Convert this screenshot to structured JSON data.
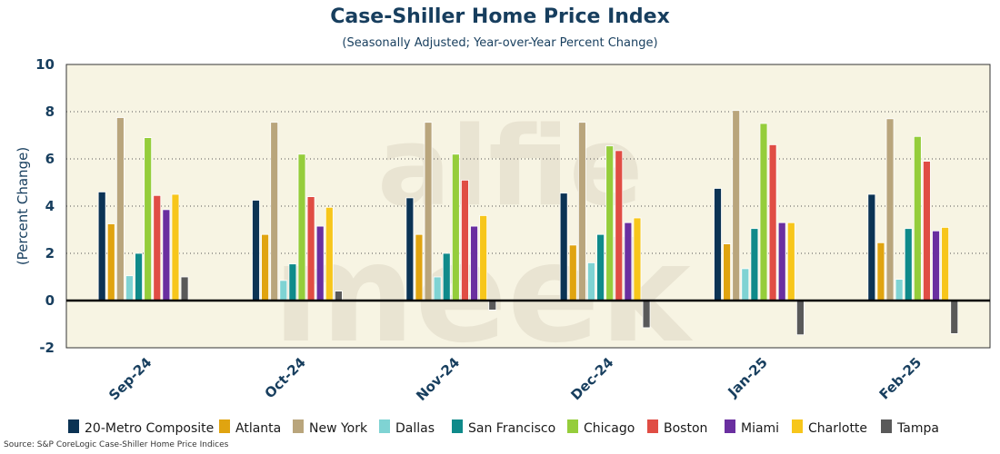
{
  "title": "Case-Shiller Home Price Index",
  "subtitle": "(Seasonally Adjusted; Year-over-Year Percent Change)",
  "source": "Source: S&P CoreLogic Case-Shiller Home Price Indices",
  "watermark": [
    "alfie",
    "meek"
  ],
  "chart_data": {
    "type": "bar",
    "title": "Case-Shiller Home Price Index",
    "subtitle": "(Seasonally Adjusted; Year-over-Year Percent Change)",
    "xlabel": "",
    "ylabel": "(Percent Change)",
    "ylim": [
      -2,
      10
    ],
    "yticks": [
      -2,
      0,
      2,
      4,
      6,
      8,
      10
    ],
    "grid": true,
    "legend": "bottom",
    "categories": [
      "Sep-24",
      "Oct-24",
      "Nov-24",
      "Dec-24",
      "Jan-25",
      "Feb-25"
    ],
    "series": [
      {
        "name": "20-Metro Composite",
        "color": "#0b3354",
        "values": [
          4.6,
          4.25,
          4.35,
          4.55,
          4.75,
          4.5
        ]
      },
      {
        "name": "Atlanta",
        "color": "#e0a410",
        "values": [
          3.25,
          2.8,
          2.8,
          2.35,
          2.4,
          2.45
        ]
      },
      {
        "name": "New York",
        "color": "#b9a57c",
        "values": [
          7.75,
          7.55,
          7.55,
          7.55,
          8.05,
          7.7
        ]
      },
      {
        "name": "Dallas",
        "color": "#7fd3d3",
        "values": [
          1.05,
          0.85,
          1.0,
          1.6,
          1.35,
          0.9
        ]
      },
      {
        "name": "San Francisco",
        "color": "#0f8a8a",
        "values": [
          2.0,
          1.55,
          2.0,
          2.8,
          3.05,
          3.05
        ]
      },
      {
        "name": "Chicago",
        "color": "#95cd3b",
        "values": [
          6.9,
          6.2,
          6.2,
          6.55,
          7.5,
          6.95
        ]
      },
      {
        "name": "Boston",
        "color": "#e04d44",
        "values": [
          4.45,
          4.4,
          5.1,
          6.35,
          6.6,
          5.9
        ]
      },
      {
        "name": "Miami",
        "color": "#6a2fa0",
        "values": [
          3.85,
          3.15,
          3.15,
          3.3,
          3.3,
          2.95
        ]
      },
      {
        "name": "Charlotte",
        "color": "#f7c61b",
        "values": [
          4.5,
          3.95,
          3.6,
          3.5,
          3.3,
          3.1
        ]
      },
      {
        "name": "Tampa",
        "color": "#595959",
        "values": [
          1.0,
          0.4,
          -0.4,
          -1.15,
          -1.45,
          -1.4
        ]
      }
    ]
  }
}
